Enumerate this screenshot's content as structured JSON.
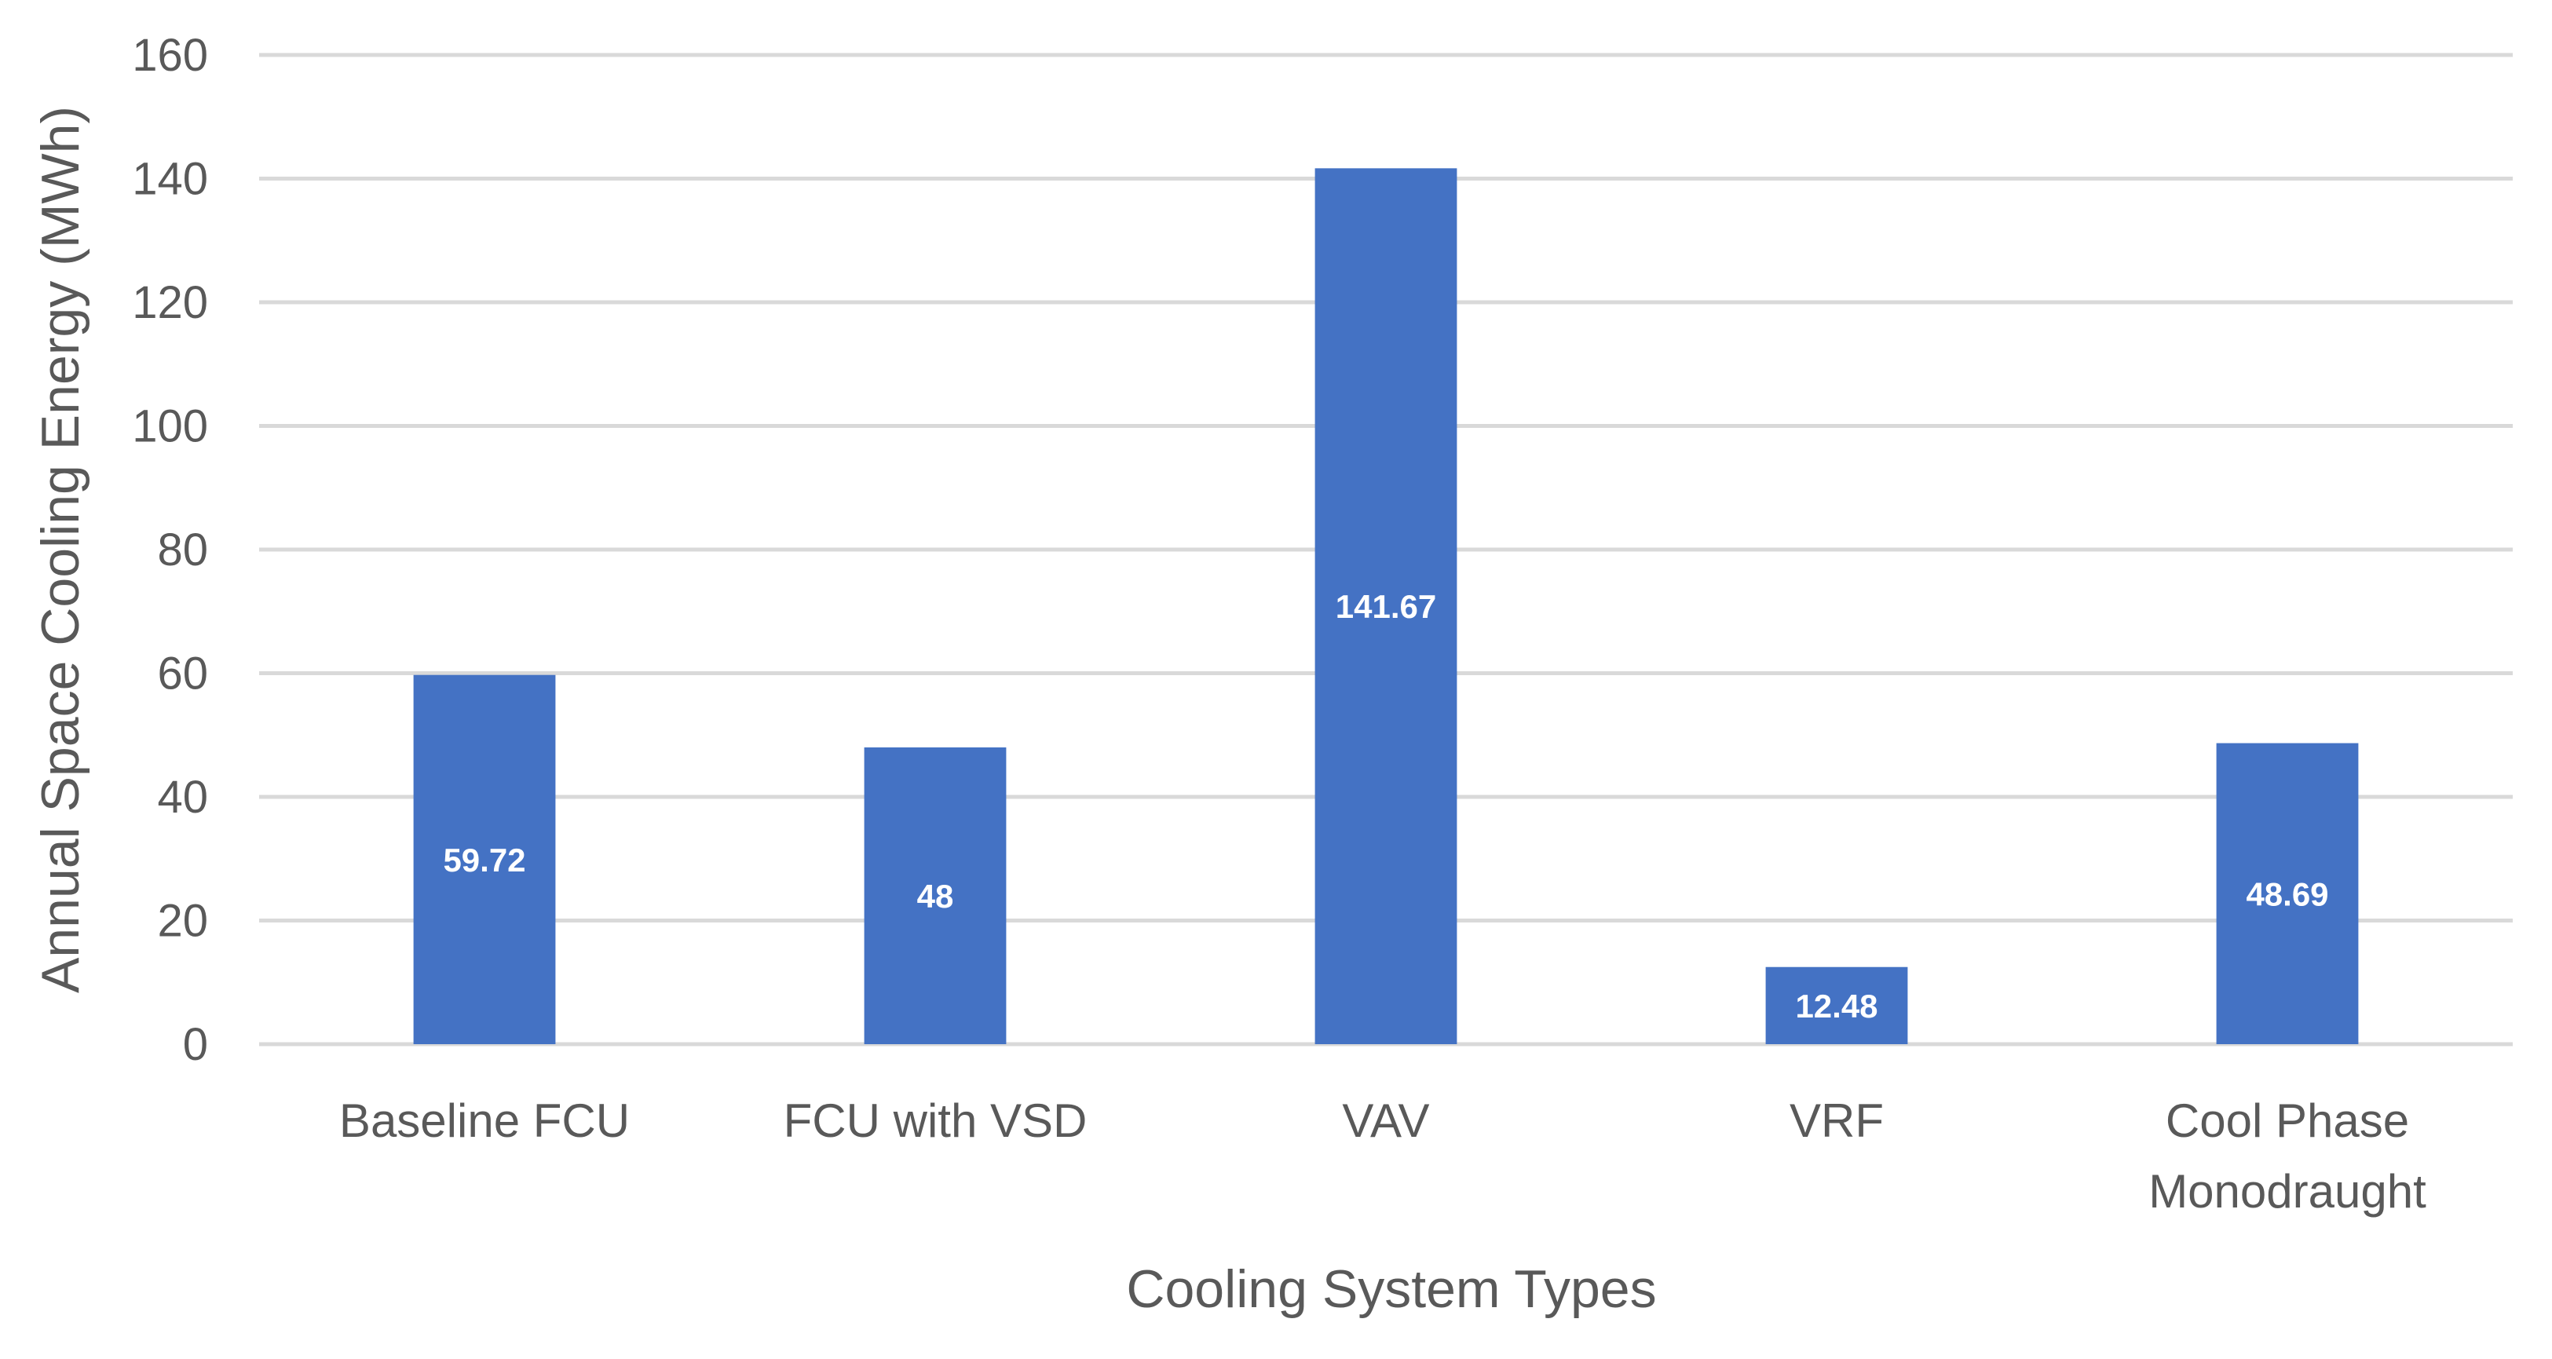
{
  "chart_data": {
    "type": "bar",
    "title": "",
    "xlabel": "Cooling System Types",
    "ylabel": "Annual Space Cooling Energy (MWh)",
    "categories": [
      [
        "Baseline FCU"
      ],
      [
        "FCU with VSD"
      ],
      [
        "VAV"
      ],
      [
        "VRF"
      ],
      [
        "Cool Phase",
        "Monodraught"
      ]
    ],
    "values": [
      59.72,
      48,
      141.67,
      12.48,
      48.69
    ],
    "data_labels": [
      "59.72",
      "48",
      "141.67",
      "12.48",
      "48.69"
    ],
    "ylim": [
      0,
      160
    ],
    "yticks": [
      0,
      20,
      40,
      60,
      80,
      100,
      120,
      140,
      160
    ],
    "grid": true,
    "legend": "none",
    "colors": {
      "bar": "#4472c4",
      "label": "#ffffff",
      "grid": "#d9d9d9",
      "text": "#595959"
    }
  }
}
